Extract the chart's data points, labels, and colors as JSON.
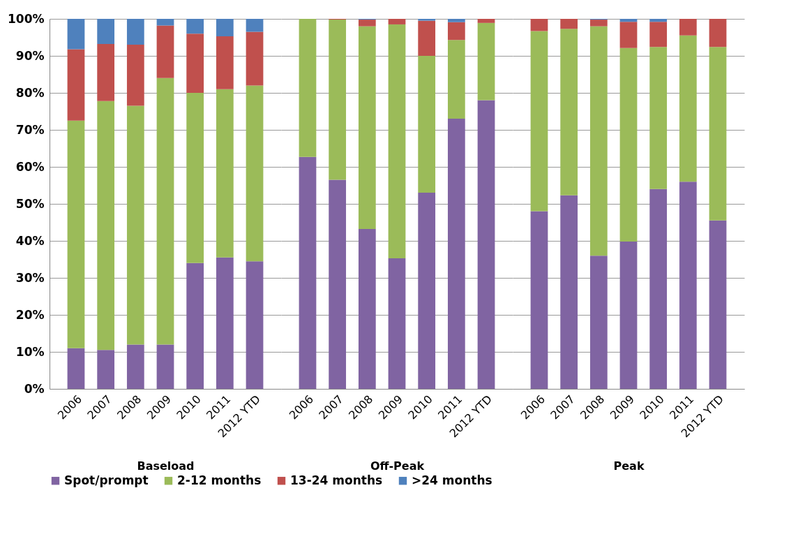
{
  "chart_data": [
    {
      "type": "bar",
      "stacked": true,
      "xlabel": "Baseload",
      "categories": [
        "2006",
        "2007",
        "2008",
        "2009",
        "2010",
        "2011",
        "2012 YTD"
      ],
      "ylim": [
        0,
        100
      ],
      "yticks": [
        {
          "value": 0,
          "label": "0%"
        },
        {
          "value": 10,
          "label": "10%"
        },
        {
          "value": 20,
          "label": "20%"
        },
        {
          "value": 30,
          "label": "30%"
        },
        {
          "value": 40,
          "label": "40%"
        },
        {
          "value": 50,
          "label": "50%"
        },
        {
          "value": 60,
          "label": "60%"
        },
        {
          "value": 70,
          "label": "70%"
        },
        {
          "value": 80,
          "label": "80%"
        },
        {
          "value": 90,
          "label": "90%"
        },
        {
          "value": 100,
          "label": "100%"
        }
      ],
      "grid": "y",
      "legend": "bottom",
      "series": [
        {
          "name": "Spot/prompt",
          "color": "#8064a2",
          "values": [
            11,
            10.5,
            12,
            12,
            34,
            35.5,
            34.5
          ]
        },
        {
          "name": "2-12 months",
          "color": "#9bbb59",
          "values": [
            61.5,
            67.3,
            64.5,
            72,
            46,
            45.5,
            47.5
          ]
        },
        {
          "name": "13-24 months",
          "color": "#c0504d",
          "values": [
            19.3,
            15.4,
            16.5,
            14.2,
            16,
            14.3,
            14.5
          ]
        },
        {
          "name": ">24 months",
          "color": "#4f81bd",
          "values": [
            8.2,
            6.8,
            7,
            1.8,
            4,
            4.7,
            3.5
          ]
        }
      ]
    },
    {
      "type": "bar",
      "stacked": true,
      "xlabel": "Off-Peak",
      "categories": [
        "2006",
        "2007",
        "2008",
        "2009",
        "2010",
        "2011",
        "2012 YTD"
      ],
      "ylim": [
        0,
        100
      ],
      "yticks": [
        0,
        10,
        20,
        30,
        40,
        50,
        60,
        70,
        80,
        90,
        100
      ],
      "grid": "y",
      "legend": "bottom",
      "tick_labels": "x",
      "series": [
        {
          "name": "Spot/prompt",
          "color": "#8064a2",
          "values": [
            62.7,
            56.5,
            43.2,
            35.3,
            53,
            73,
            78
          ]
        },
        {
          "name": "2-12 months",
          "color": "#9bbb59",
          "values": [
            37.3,
            43.3,
            54.8,
            63.2,
            37,
            21.3,
            20.9
          ]
        },
        {
          "name": "13-24 months",
          "color": "#c0504d",
          "values": [
            0,
            0.2,
            1.8,
            1.5,
            9.5,
            4.8,
            1.1
          ]
        },
        {
          "name": ">24 months",
          "color": "#4f81bd",
          "values": [
            0,
            0,
            0.2,
            0,
            0.5,
            0.9,
            0
          ]
        }
      ]
    },
    {
      "type": "bar",
      "stacked": true,
      "xlabel": "Peak",
      "categories": [
        "2006",
        "2007",
        "2008",
        "2009",
        "2010",
        "2011",
        "2012 YTD"
      ],
      "ylim": [
        0,
        100
      ],
      "yticks": [
        0,
        10,
        20,
        30,
        40,
        50,
        60,
        70,
        80,
        90,
        100
      ],
      "grid": "y",
      "legend": "bottom",
      "tick_labels": "x",
      "series": [
        {
          "name": "Spot/prompt",
          "color": "#8064a2",
          "values": [
            48,
            52.3,
            36,
            39.8,
            54,
            56,
            45.5
          ]
        },
        {
          "name": "2-12 months",
          "color": "#9bbb59",
          "values": [
            48.7,
            45,
            62,
            52.3,
            38.4,
            39.5,
            46.9
          ]
        },
        {
          "name": "13-24 months",
          "color": "#c0504d",
          "values": [
            3.3,
            2.7,
            1.8,
            7.1,
            6.8,
            4.5,
            7.6
          ]
        },
        {
          "name": ">24 months",
          "color": "#4f81bd",
          "values": [
            0,
            0,
            0.2,
            0.8,
            0.8,
            0,
            0
          ]
        }
      ]
    }
  ]
}
